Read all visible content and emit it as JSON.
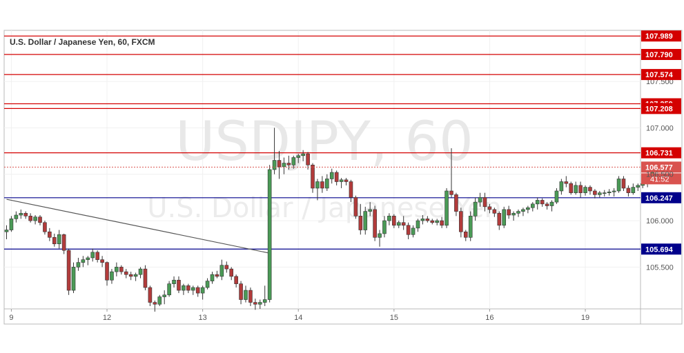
{
  "chart_data": {
    "type": "candlestick",
    "title": "U.S. Dollar / Japanese Yen, 60, FXCM",
    "watermark": {
      "symbol": "USDJPY, 60",
      "name": "U.S. Dollar / Japanese Yen"
    },
    "ylim": [
      105.05,
      108.05
    ],
    "xlabel": "",
    "ylabel": "",
    "grid": true,
    "x_ticks": [
      {
        "label": "9",
        "index": 1
      },
      {
        "label": "12",
        "index": 21
      },
      {
        "label": "13",
        "index": 41
      },
      {
        "label": "14",
        "index": 61
      },
      {
        "label": "15",
        "index": 81
      },
      {
        "label": "16",
        "index": 101
      },
      {
        "label": "19",
        "index": 121
      }
    ],
    "y_ticks": [
      {
        "label": "105.500",
        "value": 105.5
      },
      {
        "label": "106.000",
        "value": 106.0
      },
      {
        "label": "106.500",
        "value": 106.5
      },
      {
        "label": "107.000",
        "value": 107.0
      },
      {
        "label": "107.500",
        "value": 107.5
      }
    ],
    "levels": [
      {
        "label": "107.989",
        "value": 107.989,
        "kind": "resistance"
      },
      {
        "label": "107.790",
        "value": 107.79,
        "kind": "resistance"
      },
      {
        "label": "107.574",
        "value": 107.574,
        "kind": "resistance"
      },
      {
        "label": "107.259",
        "value": 107.259,
        "kind": "resistance"
      },
      {
        "label": "107.208",
        "value": 107.208,
        "kind": "resistance"
      },
      {
        "label": "106.731",
        "value": 106.731,
        "kind": "resistance"
      },
      {
        "label": "106.247",
        "value": 106.247,
        "kind": "support"
      },
      {
        "label": "105.694",
        "value": 105.694,
        "kind": "support"
      }
    ],
    "current_price": {
      "label": "106.577",
      "value": 106.577,
      "countdown": "41:52"
    },
    "trendline": {
      "from": {
        "index": 0,
        "value": 106.23
      },
      "to": {
        "index": 55,
        "value": 105.65
      }
    },
    "colors": {
      "up": "#4a9a56",
      "down": "#b23b3b",
      "resistance": "#d40000",
      "support": "#00008b",
      "price_label": "#d9534f",
      "trendline": "#555555"
    },
    "candles": [
      [
        105.88,
        105.95,
        105.8,
        105.9
      ],
      [
        105.9,
        106.05,
        105.88,
        106.02
      ],
      [
        106.02,
        106.1,
        105.98,
        106.06
      ],
      [
        106.06,
        106.12,
        106.02,
        106.08
      ],
      [
        106.08,
        106.1,
        106.02,
        106.05
      ],
      [
        106.05,
        106.08,
        105.98,
        106.0
      ],
      [
        106.0,
        106.06,
        105.96,
        106.04
      ],
      [
        106.04,
        106.06,
        105.95,
        105.98
      ],
      [
        105.98,
        106.0,
        105.85,
        105.88
      ],
      [
        105.88,
        105.92,
        105.78,
        105.82
      ],
      [
        105.82,
        105.86,
        105.72,
        105.75
      ],
      [
        105.75,
        105.9,
        105.7,
        105.85
      ],
      [
        105.85,
        105.86,
        105.64,
        105.68
      ],
      [
        105.68,
        105.7,
        105.2,
        105.25
      ],
      [
        105.25,
        105.55,
        105.22,
        105.5
      ],
      [
        105.5,
        105.6,
        105.46,
        105.55
      ],
      [
        105.55,
        105.62,
        105.5,
        105.58
      ],
      [
        105.58,
        105.62,
        105.52,
        105.6
      ],
      [
        105.6,
        105.7,
        105.56,
        105.66
      ],
      [
        105.66,
        105.68,
        105.55,
        105.58
      ],
      [
        105.58,
        105.62,
        105.5,
        105.55
      ],
      [
        105.55,
        105.56,
        105.3,
        105.36
      ],
      [
        105.36,
        105.48,
        105.32,
        105.45
      ],
      [
        105.45,
        105.55,
        105.4,
        105.5
      ],
      [
        105.5,
        105.52,
        105.42,
        105.45
      ],
      [
        105.45,
        105.48,
        105.38,
        105.42
      ],
      [
        105.42,
        105.45,
        105.36,
        105.4
      ],
      [
        105.4,
        105.44,
        105.35,
        105.42
      ],
      [
        105.42,
        105.5,
        105.38,
        105.48
      ],
      [
        105.48,
        105.52,
        105.25,
        105.28
      ],
      [
        105.28,
        105.3,
        105.08,
        105.12
      ],
      [
        105.12,
        105.14,
        105.02,
        105.1
      ],
      [
        105.1,
        105.2,
        105.08,
        105.18
      ],
      [
        105.18,
        105.25,
        105.1,
        105.2
      ],
      [
        105.2,
        105.35,
        105.18,
        105.32
      ],
      [
        105.32,
        105.4,
        105.28,
        105.36
      ],
      [
        105.36,
        105.4,
        105.22,
        105.25
      ],
      [
        105.25,
        105.32,
        105.2,
        105.3
      ],
      [
        105.3,
        105.32,
        105.22,
        105.25
      ],
      [
        105.25,
        105.3,
        105.2,
        105.28
      ],
      [
        105.28,
        105.3,
        105.18,
        105.22
      ],
      [
        105.22,
        105.3,
        105.15,
        105.28
      ],
      [
        105.28,
        105.38,
        105.26,
        105.35
      ],
      [
        105.35,
        105.45,
        105.32,
        105.42
      ],
      [
        105.42,
        105.46,
        105.38,
        105.4
      ],
      [
        105.4,
        105.58,
        105.36,
        105.52
      ],
      [
        105.52,
        105.56,
        105.44,
        105.48
      ],
      [
        105.48,
        105.5,
        105.36,
        105.4
      ],
      [
        105.4,
        105.42,
        105.28,
        105.32
      ],
      [
        105.32,
        105.35,
        105.1,
        105.15
      ],
      [
        105.15,
        105.3,
        105.12,
        105.25
      ],
      [
        105.25,
        105.28,
        105.08,
        105.12
      ],
      [
        105.12,
        105.16,
        105.04,
        105.1
      ],
      [
        105.1,
        105.15,
        105.05,
        105.12
      ],
      [
        105.12,
        105.3,
        105.08,
        105.15
      ],
      [
        105.15,
        106.6,
        105.12,
        106.55
      ],
      [
        106.55,
        107.0,
        106.5,
        106.65
      ],
      [
        106.65,
        106.75,
        106.45,
        106.58
      ],
      [
        106.58,
        106.68,
        106.5,
        106.62
      ],
      [
        106.62,
        106.7,
        106.55,
        106.6
      ],
      [
        106.6,
        106.7,
        106.56,
        106.68
      ],
      [
        106.68,
        106.72,
        106.62,
        106.7
      ],
      [
        106.7,
        106.76,
        106.64,
        106.72
      ],
      [
        106.72,
        106.74,
        106.55,
        106.6
      ],
      [
        106.6,
        106.62,
        106.3,
        106.35
      ],
      [
        106.35,
        106.45,
        106.22,
        106.42
      ],
      [
        106.42,
        106.48,
        106.3,
        106.35
      ],
      [
        106.35,
        106.5,
        106.32,
        106.45
      ],
      [
        106.45,
        106.56,
        106.4,
        106.52
      ],
      [
        106.52,
        106.54,
        106.38,
        106.42
      ],
      [
        106.42,
        106.46,
        106.35,
        106.44
      ],
      [
        106.44,
        106.46,
        106.38,
        106.42
      ],
      [
        106.42,
        106.44,
        106.2,
        106.25
      ],
      [
        106.25,
        106.27,
        106.02,
        106.05
      ],
      [
        106.05,
        106.18,
        105.85,
        105.9
      ],
      [
        105.9,
        106.15,
        105.85,
        106.1
      ],
      [
        106.1,
        106.2,
        106.05,
        106.12
      ],
      [
        106.12,
        106.16,
        105.78,
        105.82
      ],
      [
        105.82,
        105.9,
        105.72,
        105.86
      ],
      [
        105.86,
        106.05,
        105.82,
        106.0
      ],
      [
        106.0,
        106.08,
        105.95,
        106.05
      ],
      [
        106.05,
        106.07,
        105.92,
        105.95
      ],
      [
        105.95,
        106.0,
        105.92,
        105.98
      ],
      [
        105.98,
        106.05,
        105.9,
        105.95
      ],
      [
        105.95,
        105.98,
        105.8,
        105.85
      ],
      [
        105.85,
        105.95,
        105.82,
        105.92
      ],
      [
        105.92,
        106.02,
        105.88,
        106.0
      ],
      [
        106.0,
        106.06,
        105.96,
        106.02
      ],
      [
        106.02,
        106.05,
        105.98,
        106.0
      ],
      [
        106.0,
        106.02,
        105.96,
        105.98
      ],
      [
        105.98,
        106.02,
        105.95,
        106.0
      ],
      [
        106.0,
        106.04,
        105.92,
        105.95
      ],
      [
        105.95,
        106.35,
        105.92,
        106.32
      ],
      [
        106.32,
        106.78,
        106.25,
        106.28
      ],
      [
        106.28,
        106.3,
        106.05,
        106.1
      ],
      [
        106.1,
        106.14,
        105.82,
        105.88
      ],
      [
        105.88,
        105.9,
        105.78,
        105.82
      ],
      [
        105.82,
        106.1,
        105.78,
        106.05
      ],
      [
        106.05,
        106.25,
        106.0,
        106.2
      ],
      [
        106.2,
        106.3,
        106.15,
        106.25
      ],
      [
        106.25,
        106.3,
        106.1,
        106.15
      ],
      [
        106.15,
        106.18,
        106.08,
        106.12
      ],
      [
        106.12,
        106.14,
        106.04,
        106.08
      ],
      [
        106.08,
        106.1,
        105.9,
        105.95
      ],
      [
        105.95,
        106.15,
        105.92,
        106.12
      ],
      [
        106.12,
        106.16,
        106.02,
        106.06
      ],
      [
        106.06,
        106.1,
        106.0,
        106.08
      ],
      [
        106.08,
        106.12,
        106.04,
        106.1
      ],
      [
        106.1,
        106.14,
        106.05,
        106.12
      ],
      [
        106.12,
        106.16,
        106.08,
        106.14
      ],
      [
        106.14,
        106.2,
        106.1,
        106.18
      ],
      [
        106.18,
        106.25,
        106.12,
        106.22
      ],
      [
        106.22,
        106.24,
        106.15,
        106.18
      ],
      [
        106.18,
        106.2,
        106.12,
        106.16
      ],
      [
        106.16,
        106.22,
        106.1,
        106.2
      ],
      [
        106.2,
        106.35,
        106.18,
        106.32
      ],
      [
        106.32,
        106.45,
        106.28,
        106.42
      ],
      [
        106.42,
        106.48,
        106.36,
        106.4
      ],
      [
        106.4,
        106.42,
        106.28,
        106.3
      ],
      [
        106.3,
        106.42,
        106.28,
        106.38
      ],
      [
        106.38,
        106.42,
        106.25,
        106.3
      ],
      [
        106.3,
        106.38,
        106.27,
        106.36
      ],
      [
        106.36,
        106.38,
        106.28,
        106.32
      ],
      [
        106.32,
        106.34,
        106.24,
        106.28
      ],
      [
        106.28,
        106.32,
        106.25,
        106.3
      ],
      [
        106.3,
        106.33,
        106.26,
        106.3
      ],
      [
        106.3,
        106.34,
        106.27,
        106.31
      ],
      [
        106.31,
        106.35,
        106.26,
        106.32
      ],
      [
        106.32,
        106.48,
        106.3,
        106.45
      ],
      [
        106.45,
        106.48,
        106.32,
        106.35
      ],
      [
        106.35,
        106.38,
        106.26,
        106.3
      ],
      [
        106.3,
        106.4,
        106.28,
        106.36
      ],
      [
        106.36,
        106.4,
        106.32,
        106.38
      ],
      [
        106.38,
        106.42,
        106.35,
        106.4
      ],
      [
        106.4,
        106.44,
        106.36,
        106.42
      ],
      [
        106.42,
        106.6,
        106.4,
        106.57
      ]
    ]
  }
}
